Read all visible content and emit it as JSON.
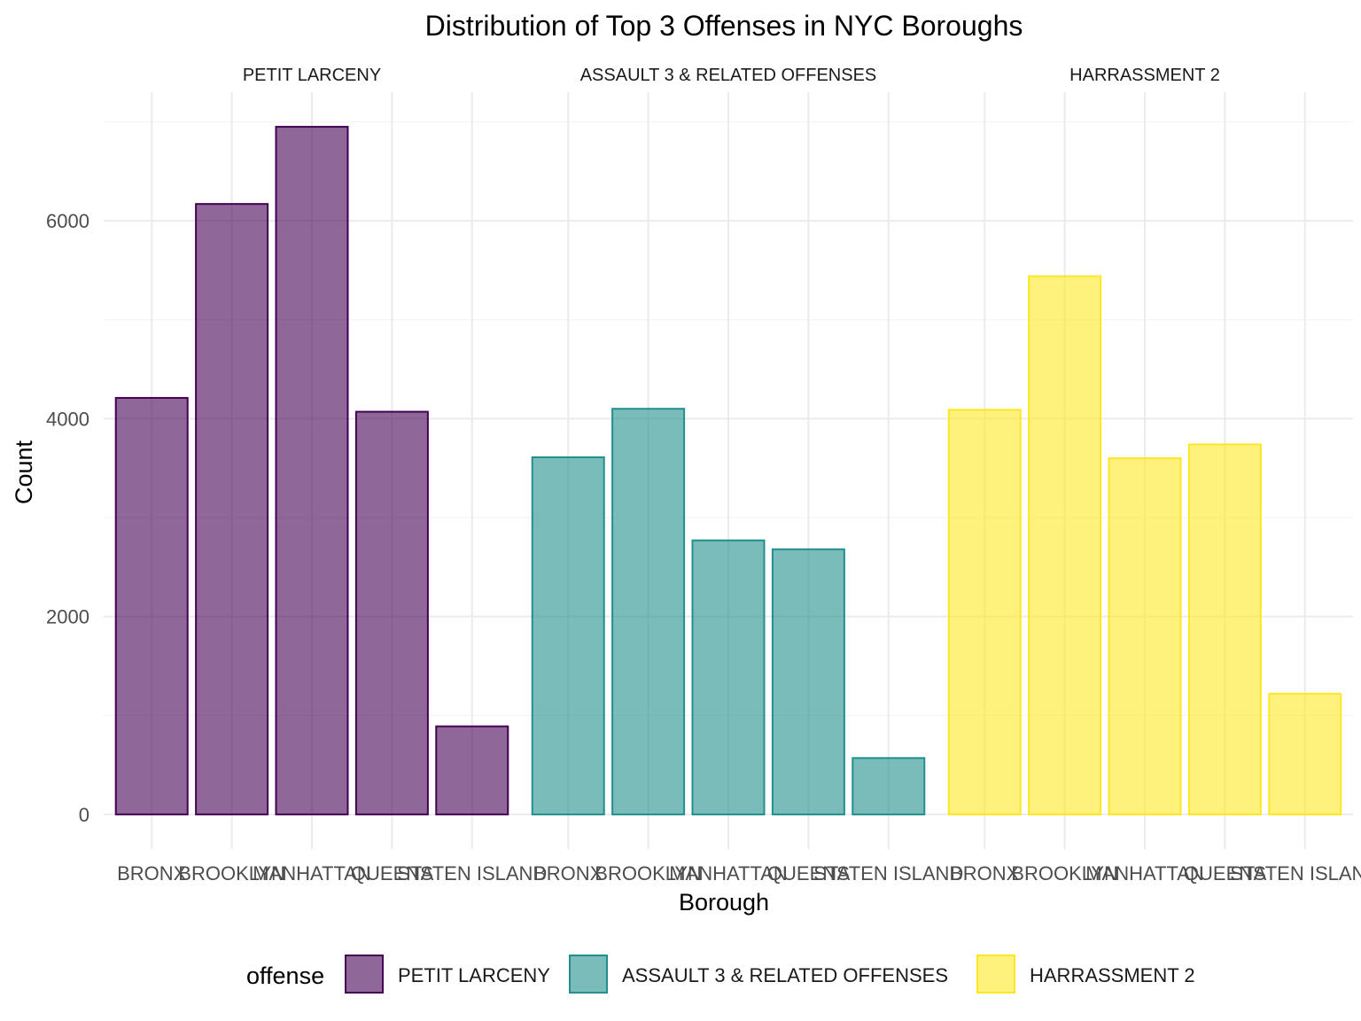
{
  "chart_data": {
    "type": "bar",
    "title": "Distribution of Top 3 Offenses in NYC Boroughs",
    "xlabel": "Borough",
    "ylabel": "Count",
    "categories": [
      "BRONX",
      "BROOKLYN",
      "MANHATTAN",
      "QUEENS",
      "STATEN ISLAND"
    ],
    "ylim": [
      -350,
      7300
    ],
    "y_ticks": [
      0,
      2000,
      4000,
      6000
    ],
    "y_tick_labels": [
      "0",
      "2000",
      "4000",
      "6000"
    ],
    "grid": true,
    "legend": {
      "title": "offense",
      "position": "bottom"
    },
    "facets": [
      {
        "name": "PETIT LARCENY",
        "fill": "#440154",
        "stroke": "#440154",
        "values": [
          4210,
          6170,
          6950,
          4070,
          890
        ]
      },
      {
        "name": "ASSAULT 3 & RELATED OFFENSES",
        "fill": "#21908C",
        "stroke": "#21908C",
        "values": [
          3610,
          4100,
          2770,
          2680,
          570
        ]
      },
      {
        "name": "HARRASSMENT 2",
        "fill": "#FDE725",
        "stroke": "#FDE725",
        "values": [
          4090,
          5440,
          3600,
          3740,
          1220
        ]
      }
    ]
  }
}
